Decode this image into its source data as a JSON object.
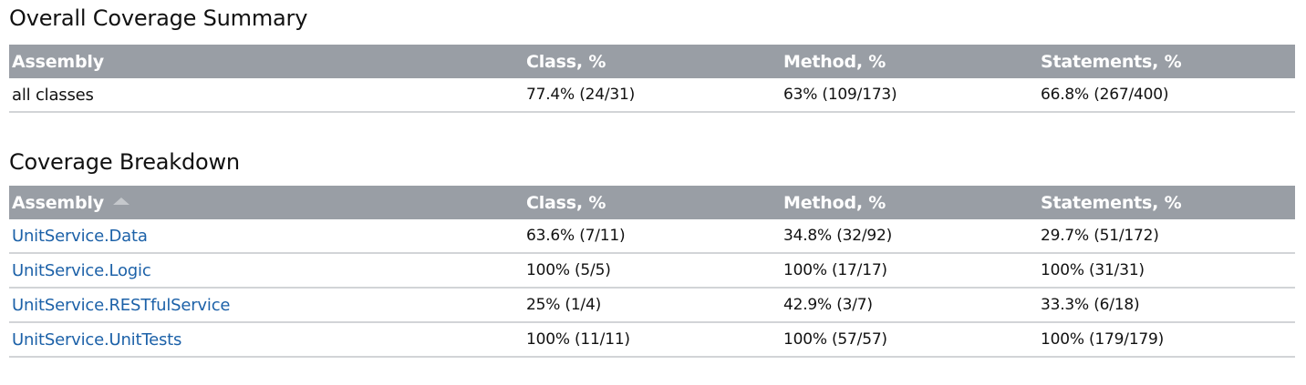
{
  "summary": {
    "title": "Overall Coverage Summary",
    "headers": {
      "assembly": "Assembly",
      "class": "Class, %",
      "method": "Method, %",
      "statements": "Statements, %"
    },
    "row": {
      "assembly": "all classes",
      "class": "77.4% (24/31)",
      "method": "63% (109/173)",
      "statements": "66.8% (267/400)"
    }
  },
  "breakdown": {
    "title": "Coverage Breakdown",
    "sort_icon": "sort-ascending-icon",
    "headers": {
      "assembly": "Assembly",
      "class": "Class, %",
      "method": "Method, %",
      "statements": "Statements, %"
    },
    "rows": [
      {
        "assembly": "UnitService.Data",
        "class": "63.6% (7/11)",
        "method": "34.8% (32/92)",
        "statements": "29.7% (51/172)"
      },
      {
        "assembly": "UnitService.Logic",
        "class": "100% (5/5)",
        "method": "100% (17/17)",
        "statements": "100% (31/31)"
      },
      {
        "assembly": "UnitService.RESTfulService",
        "class": "25% (1/4)",
        "method": "42.9% (3/7)",
        "statements": "33.3% (6/18)"
      },
      {
        "assembly": "UnitService.UnitTests",
        "class": "100% (11/11)",
        "method": "100% (57/57)",
        "statements": "100% (179/179)"
      }
    ]
  },
  "colors": {
    "header_bg": "#999ea5",
    "link": "#1c61a8",
    "row_divider": "#d2d4d7"
  }
}
